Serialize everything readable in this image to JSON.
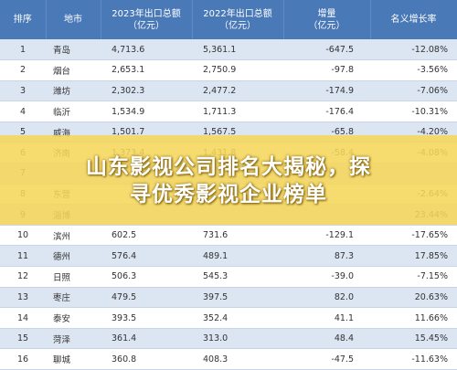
{
  "table": {
    "headers": [
      "排序",
      "地市",
      "2023年出口总额\n（亿元）",
      "2022年出口总额\n（亿元）",
      "增量\n（亿元）",
      "名义增长率"
    ],
    "rows": [
      {
        "rank": "1",
        "city": "青岛",
        "y2023": "4,713.6",
        "y2022": "5,361.1",
        "increase": "-647.5",
        "growth": "-12.08%"
      },
      {
        "rank": "2",
        "city": "烟台",
        "y2023": "2,653.1",
        "y2022": "2,750.9",
        "increase": "-97.8",
        "growth": "-3.56%"
      },
      {
        "rank": "3",
        "city": "潍坊",
        "y2023": "2,302.3",
        "y2022": "2,477.2",
        "increase": "-174.9",
        "growth": "-7.06%"
      },
      {
        "rank": "4",
        "city": "临沂",
        "y2023": "1,534.9",
        "y2022": "1,711.3",
        "increase": "-176.4",
        "growth": "-10.31%"
      },
      {
        "rank": "5",
        "city": "威海",
        "y2023": "1,501.7",
        "y2022": "1,567.5",
        "increase": "-65.8",
        "growth": "-4.20%"
      },
      {
        "rank": "6",
        "city": "济南",
        "y2023": "1,373.4",
        "y2022": "1,431.8",
        "increase": "-58.4",
        "growth": "-4.08%"
      },
      {
        "rank": "7",
        "city": "",
        "y2023": "",
        "y2022": "",
        "increase": "",
        "growth": ""
      },
      {
        "rank": "8",
        "city": "东营",
        "y2023": "",
        "y2022": "",
        "increase": "",
        "growth": "-2.64%"
      },
      {
        "rank": "9",
        "city": "淄博",
        "y2023": "",
        "y2022": "",
        "increase": "",
        "growth": "23.44%"
      },
      {
        "rank": "10",
        "city": "滨州",
        "y2023": "602.5",
        "y2022": "731.6",
        "increase": "-129.1",
        "growth": "-17.65%"
      },
      {
        "rank": "11",
        "city": "德州",
        "y2023": "576.4",
        "y2022": "489.1",
        "increase": "87.3",
        "growth": "17.85%"
      },
      {
        "rank": "12",
        "city": "日照",
        "y2023": "506.3",
        "y2022": "545.3",
        "increase": "-39.0",
        "growth": "-7.15%"
      },
      {
        "rank": "13",
        "city": "枣庄",
        "y2023": "479.5",
        "y2022": "397.5",
        "increase": "82.0",
        "growth": "20.63%"
      },
      {
        "rank": "14",
        "city": "泰安",
        "y2023": "393.5",
        "y2022": "352.4",
        "increase": "41.1",
        "growth": "11.66%"
      },
      {
        "rank": "15",
        "city": "菏泽",
        "y2023": "361.4",
        "y2022": "313.0",
        "increase": "48.4",
        "growth": "15.45%"
      },
      {
        "rank": "16",
        "city": "聊城",
        "y2023": "360.8",
        "y2022": "408.3",
        "increase": "-47.5",
        "growth": "-11.63%"
      }
    ]
  },
  "banner": {
    "line1": "山东影视公司排名大揭秘，探",
    "line2": "寻优秀影视企业榜单"
  },
  "colors": {
    "header_bg": "#4a79b7",
    "row_alt_bg": "#dce5f2",
    "banner_bg": "#f5d65a",
    "banner_text": "#ffffff"
  }
}
